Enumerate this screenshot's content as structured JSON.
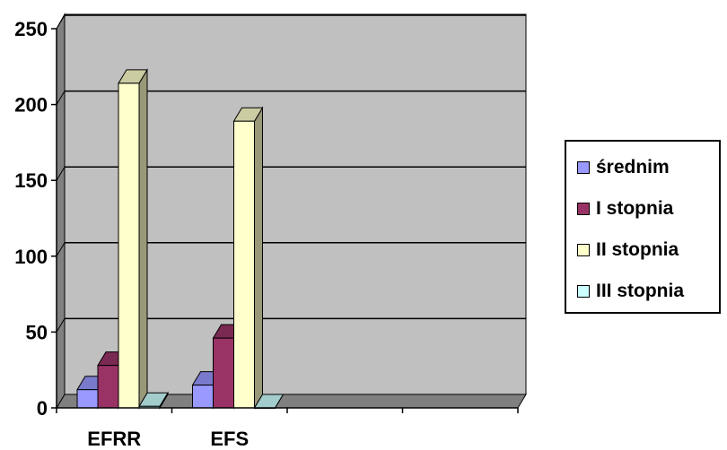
{
  "chart_data": {
    "type": "bar",
    "categories": [
      "EFRR",
      "EFS"
    ],
    "series": [
      {
        "name": "średnim",
        "values": [
          12,
          15
        ],
        "color": "#9999FF"
      },
      {
        "name": "I stopnia",
        "values": [
          28,
          46
        ],
        "color": "#993366"
      },
      {
        "name": "II stopnia",
        "values": [
          214,
          189
        ],
        "color": "#FFFFCC"
      },
      {
        "name": "III stopnia",
        "values": [
          1,
          0
        ],
        "color": "#CCFFFF"
      }
    ],
    "ylim": [
      0,
      250
    ],
    "yticks": [
      0,
      50,
      100,
      150,
      200,
      250
    ],
    "grid": true,
    "legend_position": "right",
    "plot_background": "#C0C0C0",
    "projection": "3d"
  }
}
